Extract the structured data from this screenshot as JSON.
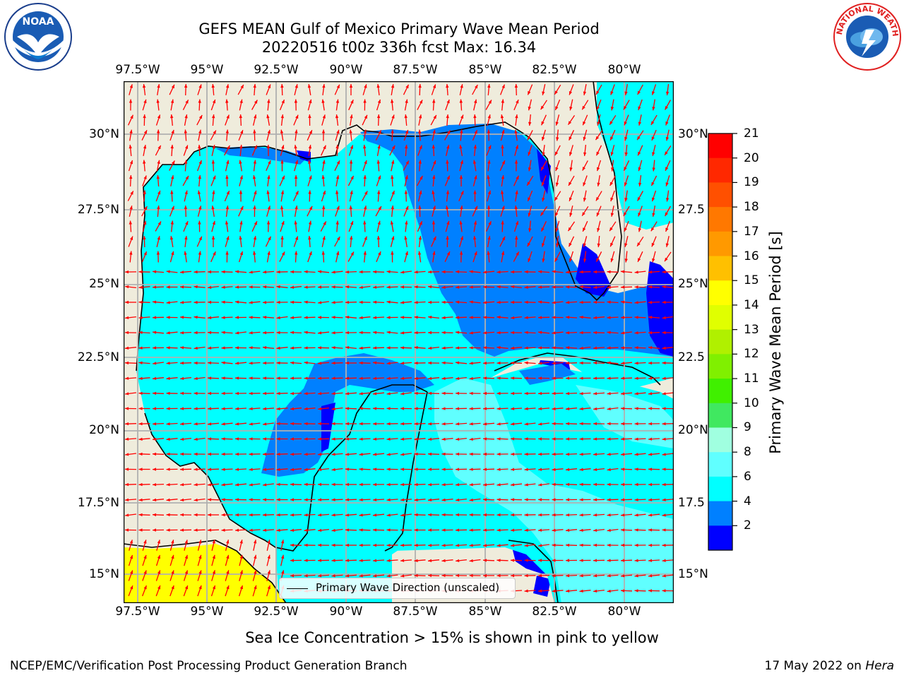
{
  "header": {
    "title_line1": "GEFS MEAN Gulf of Mexico Primary Wave Mean Period",
    "title_line2": "20220516 t00z 336h fcst   Max: 16.34"
  },
  "logos": {
    "left": "NOAA",
    "right": "NATIONAL WEATHER SERVICE"
  },
  "map": {
    "x_ticks": [
      "97.5°W",
      "95°W",
      "92.5°W",
      "90°W",
      "87.5°W",
      "85°W",
      "82.5°W",
      "80°W"
    ],
    "y_ticks_left": [
      "30°N",
      "27.5°N",
      "25°N",
      "22.5°N",
      "20°N",
      "17.5°N",
      "15°N"
    ],
    "y_ticks_right": [
      "30°N",
      "27.5",
      "25°N",
      "22.5",
      "20°N",
      "17.5",
      "15°N"
    ],
    "legend_label": "Primary Wave Direction (unscaled)",
    "max_value": 16.34
  },
  "colorbar": {
    "label": "Primary Wave Mean Period [s]",
    "ticks": [
      "21",
      "20",
      "19",
      "18",
      "17",
      "16",
      "15",
      "14",
      "13",
      "12",
      "11",
      "10",
      "9",
      "8",
      "6",
      "4",
      "2"
    ],
    "colors": [
      "#ff0000",
      "#ff2800",
      "#ff5000",
      "#ff7800",
      "#ff9900",
      "#ffc000",
      "#ffff00",
      "#e0ff00",
      "#b0f000",
      "#80f000",
      "#40f000",
      "#40e860",
      "#a0ffe0",
      "#60ffff",
      "#00ffff",
      "#0080ff",
      "#0000ff"
    ]
  },
  "footer": {
    "subtitle": "Sea Ice Concentration > 15% is shown in pink to yellow",
    "credit": "NCEP/EMC/Verification Post Processing Product Generation Branch",
    "date": "17 May 2022 on ",
    "host": "Hera"
  }
}
